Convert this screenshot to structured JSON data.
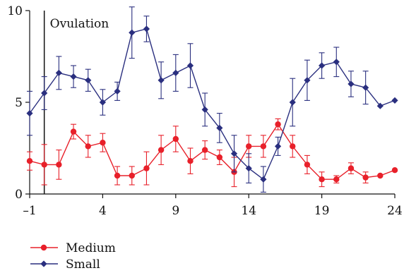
{
  "chart_data": {
    "type": "line",
    "xlabel": "",
    "ylabel": "",
    "xlim": [
      -1,
      24
    ],
    "ylim": [
      0,
      10
    ],
    "x_ticks": [
      -1,
      4,
      9,
      14,
      19,
      24
    ],
    "x_tick_labels": [
      "–1",
      "4",
      "9",
      "14",
      "19",
      "24"
    ],
    "y_ticks": [
      0,
      5,
      10
    ],
    "y_tick_labels": [
      "0",
      "5",
      "10"
    ],
    "grid": false,
    "legend_position": "bottom-left",
    "annotation": {
      "text": "Ovulation",
      "x": 0
    },
    "series": [
      {
        "name": "Medium",
        "color": "#e8202a",
        "marker": "circle",
        "x": [
          -1,
          0,
          1,
          2,
          3,
          4,
          5,
          6,
          7,
          8,
          9,
          10,
          11,
          12,
          13,
          14,
          15,
          16,
          17,
          18,
          19,
          20,
          21,
          22,
          23,
          24
        ],
        "values": [
          1.8,
          1.6,
          1.6,
          3.4,
          2.6,
          2.8,
          1.0,
          1.0,
          1.4,
          2.4,
          3.0,
          1.8,
          2.4,
          2.0,
          1.2,
          2.6,
          2.6,
          3.8,
          2.6,
          1.6,
          0.8,
          0.8,
          1.4,
          0.9,
          1.0,
          1.3
        ],
        "err": [
          0.5,
          1.1,
          0.8,
          0.4,
          0.6,
          0.5,
          0.5,
          0.5,
          0.9,
          0.8,
          0.7,
          0.7,
          0.5,
          0.4,
          0.8,
          0.6,
          0.6,
          0.3,
          0.6,
          0.5,
          0.4,
          0.2,
          0.3,
          0.3,
          0,
          0
        ]
      },
      {
        "name": "Small",
        "color": "#2a2f7f",
        "marker": "diamond",
        "x": [
          -1,
          0,
          1,
          2,
          3,
          4,
          5,
          6,
          7,
          8,
          9,
          10,
          11,
          12,
          13,
          14,
          15,
          16,
          17,
          18,
          19,
          20,
          21,
          22,
          23,
          24
        ],
        "values": [
          4.4,
          5.5,
          6.6,
          6.4,
          6.2,
          5.0,
          5.6,
          8.8,
          9.0,
          6.2,
          6.6,
          7.0,
          4.6,
          3.6,
          2.2,
          1.4,
          0.8,
          2.6,
          5.0,
          6.2,
          7.0,
          7.2,
          6.0,
          5.8,
          4.8,
          5.1
        ],
        "err": [
          1.2,
          0.9,
          0.9,
          0.6,
          0.6,
          0.7,
          0.5,
          1.4,
          0.7,
          1.0,
          1.0,
          1.2,
          0.9,
          0.8,
          1.0,
          0.8,
          0.7,
          0.5,
          1.3,
          1.1,
          0.7,
          0.8,
          0.7,
          0.9,
          0,
          0
        ]
      }
    ]
  }
}
